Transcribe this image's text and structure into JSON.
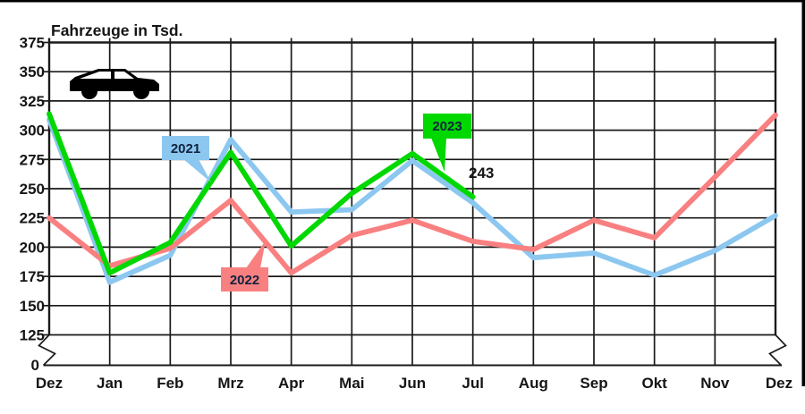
{
  "page": {
    "title": "Fahrzeuge in Tsd."
  },
  "icons": {
    "car": "car-icon"
  },
  "chart_data": {
    "type": "line",
    "title": "Fahrzeuge in Tsd.",
    "categories": [
      "Dez",
      "Jan",
      "Feb",
      "Mrz",
      "Apr",
      "Mai",
      "Jun",
      "Jul",
      "Aug",
      "Sep",
      "Okt",
      "Nov",
      "Dez"
    ],
    "series": [
      {
        "name": "2021",
        "color": "#8CC7F0",
        "values": [
          309,
          170,
          193,
          292,
          230,
          232,
          274,
          238,
          191,
          195,
          176,
          197,
          227
        ]
      },
      {
        "name": "2022",
        "color": "#F98080",
        "values": [
          225,
          184,
          199,
          240,
          178,
          210,
          223,
          205,
          198,
          223,
          208,
          260,
          313
        ]
      },
      {
        "name": "2023",
        "color": "#00D800",
        "values": [
          314,
          178,
          204,
          281,
          201,
          246,
          280,
          243
        ]
      }
    ],
    "xlabel": "",
    "ylabel": "Fahrzeuge in Tsd.",
    "yticks": [
      375,
      350,
      325,
      300,
      275,
      250,
      225,
      200,
      175,
      150,
      125
    ],
    "y_axis_zero_label": "0",
    "ylim": [
      125,
      375
    ],
    "axis_break": true,
    "grid": true,
    "legend_position": "callouts-on-chart",
    "annotations": [
      {
        "text": "243",
        "series": "2023",
        "category": "Jul",
        "value": 243
      }
    ]
  }
}
